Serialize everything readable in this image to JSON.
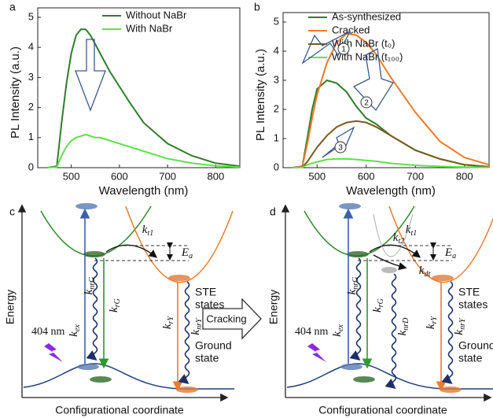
{
  "chart_data": [
    {
      "type": "line",
      "panel": "a",
      "xlabel": "Wavelength (nm)",
      "ylabel": "PL Intensity (a.u.)",
      "x": [
        450,
        470,
        480,
        490,
        500,
        510,
        520,
        530,
        540,
        550,
        560,
        580,
        600,
        620,
        650,
        700,
        750,
        800,
        850
      ],
      "series": [
        {
          "name": "Without NaBr",
          "color": "#2f7d2a",
          "values": [
            0,
            0.05,
            1.5,
            2.8,
            3.8,
            4.4,
            4.6,
            4.6,
            4.4,
            4.1,
            3.8,
            3.2,
            2.7,
            2.2,
            1.5,
            0.8,
            0.4,
            0.15,
            0.05
          ]
        },
        {
          "name": "With NaBr",
          "color": "#5fe04a",
          "values": [
            0,
            0.02,
            0.4,
            0.7,
            0.9,
            1.0,
            1.05,
            1.1,
            1.05,
            1.0,
            1.0,
            0.9,
            0.8,
            0.7,
            0.55,
            0.3,
            0.15,
            0.06,
            0.02
          ]
        }
      ],
      "xlim": [
        450,
        850
      ],
      "xticks": [
        500,
        600,
        700,
        800
      ],
      "ylim": [
        0,
        5
      ],
      "yticks": [
        0,
        1,
        2,
        3,
        4,
        5
      ],
      "legend": "upper right"
    },
    {
      "type": "line",
      "panel": "b",
      "xlabel": "Wavelength (nm)",
      "ylabel": "PL Intensity (a.u.)",
      "x": [
        450,
        470,
        480,
        490,
        500,
        520,
        540,
        560,
        580,
        600,
        620,
        650,
        700,
        750,
        800,
        850
      ],
      "series": [
        {
          "name": "As-synthesized",
          "color": "#2f7d2a",
          "values": [
            0,
            0.05,
            1.0,
            2.0,
            2.7,
            3.0,
            2.9,
            2.6,
            2.1,
            1.7,
            1.5,
            1.1,
            0.6,
            0.3,
            0.1,
            0.03
          ]
        },
        {
          "name": "Cracked",
          "color": "#f07a2a",
          "values": [
            0,
            0.05,
            0.8,
            1.7,
            2.5,
            3.6,
            4.3,
            4.6,
            4.55,
            4.3,
            3.9,
            3.1,
            1.9,
            0.9,
            0.35,
            0.1
          ]
        },
        {
          "name": "With NaBr (t₀)",
          "color": "#7a5a1e",
          "values": [
            0,
            0.02,
            0.2,
            0.45,
            0.7,
            1.1,
            1.4,
            1.55,
            1.6,
            1.55,
            1.4,
            1.1,
            0.6,
            0.3,
            0.1,
            0.03
          ]
        },
        {
          "name": "With NaBr (t₁₀₀)",
          "color": "#5fe04a",
          "values": [
            0,
            0.01,
            0.1,
            0.15,
            0.2,
            0.28,
            0.3,
            0.3,
            0.28,
            0.25,
            0.22,
            0.15,
            0.08,
            0.04,
            0.02,
            0.01
          ]
        }
      ],
      "xlim": [
        450,
        850
      ],
      "xticks": [
        500,
        600,
        700,
        800
      ],
      "ylim": [
        0,
        5
      ],
      "yticks": [
        0,
        1,
        2,
        3,
        4,
        5
      ],
      "legend": "upper right",
      "annotations": [
        "1",
        "2",
        "3"
      ]
    }
  ],
  "diagrams": [
    {
      "panel": "c",
      "ylabel": "Energy",
      "xlabel": "Configurational coordinate",
      "rates": [
        {
          "k": "k",
          "sub": "ex"
        },
        {
          "k": "k",
          "sub": "nrG"
        },
        {
          "k": "k",
          "sub": "rG"
        },
        {
          "k": "k",
          "sub": "t1"
        },
        {
          "k": "k",
          "sub": "rY"
        },
        {
          "k": "k",
          "sub": "nrY"
        }
      ],
      "ea": {
        "k": "E",
        "sub": "a"
      },
      "ste": [
        "STE",
        "states"
      ],
      "ground": [
        "Ground",
        "state"
      ],
      "excitation": "404 nm"
    },
    {
      "panel": "d",
      "ylabel": "Energy",
      "xlabel": "Configurational coordinate",
      "rates": [
        {
          "k": "k",
          "sub": "ex"
        },
        {
          "k": "k",
          "sub": "nrG"
        },
        {
          "k": "k",
          "sub": "rG"
        },
        {
          "k": "k",
          "sub": "t1"
        },
        {
          "k": "k",
          "sub": "rY"
        },
        {
          "k": "k",
          "sub": "nrY"
        },
        {
          "k": "k",
          "sub": "t2"
        },
        {
          "k": "k",
          "sub": "dt"
        },
        {
          "k": "k",
          "sub": "nrD"
        }
      ],
      "ea": {
        "k": "E",
        "sub": "a"
      },
      "ste": [
        "STE",
        "states"
      ],
      "ground": [
        "Ground",
        "state"
      ],
      "excitation": "404 nm"
    }
  ],
  "process": "Cracking"
}
